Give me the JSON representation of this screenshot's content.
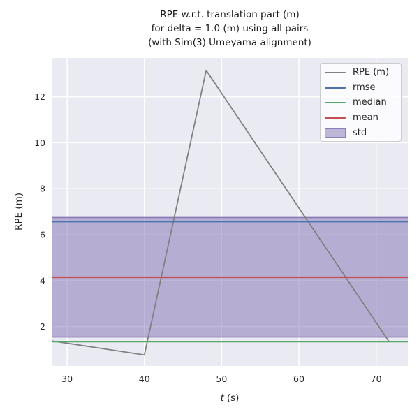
{
  "figure": {
    "title_lines": [
      "RPE w.r.t. translation part (m)",
      "for delta = 1.0 (m) using all pairs",
      "(with Sim(3) Umeyama alignment)"
    ]
  },
  "axes": {
    "ylabel": "RPE (m)",
    "xlabel_var": "t",
    "xlabel_unit": "(s)"
  },
  "chart_data": {
    "type": "line",
    "title": "RPE w.r.t. translation part (m)\nfor delta = 1.0 (m) using all pairs\n(with Sim(3) Umeyama alignment)",
    "xlabel": "t (s)",
    "ylabel": "RPE (m)",
    "xlim": [
      28.0,
      74.1
    ],
    "ylim": [
      0.29,
      13.69
    ],
    "x_ticks": [
      30,
      40,
      50,
      60,
      70
    ],
    "y_ticks": [
      2,
      4,
      6,
      8,
      10,
      12
    ],
    "grid": true,
    "grid_color": "#FFFFFF",
    "background": "#EAEAF2",
    "legend_position": "upper right",
    "series": [
      {
        "key": "rpe",
        "name": "RPE (m)",
        "kind": "line",
        "color": "#808080",
        "width": 1.8,
        "x": [
          28.0,
          40.0,
          48.0,
          71.7
        ],
        "y": [
          1.38,
          0.77,
          13.15,
          1.33
        ]
      },
      {
        "key": "rmse",
        "name": "rmse",
        "kind": "hline",
        "color": "#4C72B0",
        "width": 2.2,
        "value": 6.57
      },
      {
        "key": "median",
        "name": "median",
        "kind": "hline",
        "color": "#55A868",
        "width": 2.2,
        "value": 1.35
      },
      {
        "key": "mean",
        "name": "mean",
        "kind": "hline",
        "color": "#C44E52",
        "width": 2.2,
        "value": 4.15
      },
      {
        "key": "std",
        "name": "std",
        "kind": "band",
        "color": "#8172B2",
        "alpha": 0.5,
        "low": 1.55,
        "high": 6.75
      }
    ]
  }
}
